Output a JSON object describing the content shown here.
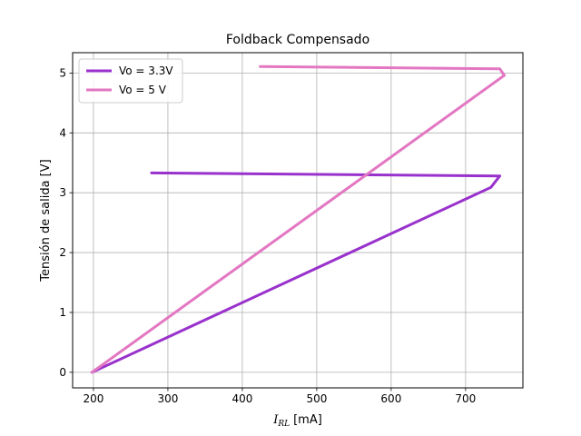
{
  "chart_data": {
    "type": "line",
    "title": "Foldback Compensado",
    "xlabel": "$I_{RL}$ [mA]",
    "xlabel_var": "I",
    "xlabel_sub": "RL",
    "xlabel_unit": "[mA]",
    "ylabel": "Tensión de salida [V]",
    "xlim": [
      172,
      777
    ],
    "ylim": [
      -0.26,
      5.34
    ],
    "xticks": [
      200,
      300,
      400,
      500,
      600,
      700
    ],
    "yticks": [
      0,
      1,
      2,
      3,
      4,
      5
    ],
    "grid": true,
    "legend_position": "top-left",
    "series": [
      {
        "name": "Vo = 3.3V",
        "color": "#9932cc",
        "x": [
          278,
          746,
          734,
          198
        ],
        "y": [
          3.33,
          3.28,
          3.09,
          0.0
        ]
      },
      {
        "name": "Vo = 5 V",
        "color": "#e377c2",
        "x": [
          424,
          746,
          752,
          198
        ],
        "y": [
          5.11,
          5.07,
          4.96,
          0.0
        ]
      }
    ]
  }
}
